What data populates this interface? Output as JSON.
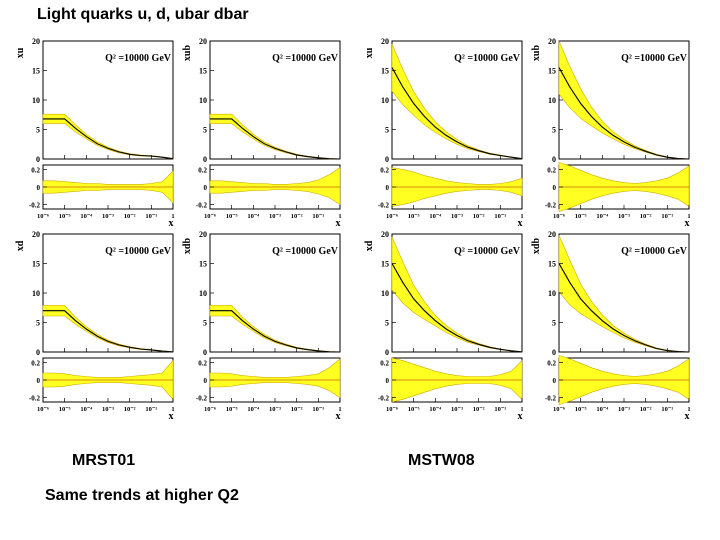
{
  "page": {
    "title": "Light quarks u, d, ubar dbar",
    "left_label": "MRST01",
    "right_label": "MSTW08",
    "footer": "Same trends at higher Q2"
  },
  "colors": {
    "band": "#ffff22",
    "band_edge": "#d4aa00",
    "central": "#000000",
    "ratio_line": "#cc6600"
  },
  "chart_data": [
    {
      "type": "line",
      "group": "MRST01",
      "ylabel": "xu",
      "annotation": "Q² =10000 GeV",
      "xlabel": "x",
      "x_ticks": [
        "10⁻⁶",
        "10⁻⁵",
        "10⁻⁴",
        "10⁻³",
        "10⁻²",
        "10⁻¹",
        "1"
      ],
      "y_ticks": [
        "20",
        "15",
        "10",
        "5",
        "0"
      ],
      "ratio_ticks": [
        "0.2",
        "0",
        "-0.2"
      ],
      "ylim": [
        0,
        20
      ],
      "ratio_ylim": [
        -0.25,
        0.25
      ],
      "x": [
        -6,
        -5.5,
        -5,
        -4.5,
        -4,
        -3.5,
        -3,
        -2.5,
        -2,
        -1.5,
        -1,
        -0.5,
        0
      ],
      "central": [
        6.8,
        6.8,
        6.8,
        5.2,
        3.8,
        2.6,
        1.8,
        1.2,
        0.8,
        0.6,
        0.5,
        0.3,
        0.05
      ],
      "band_width": [
        0.8,
        0.8,
        0.8,
        0.6,
        0.4,
        0.3,
        0.2,
        0.15,
        0.1,
        0.08,
        0.06,
        0.05,
        0.03
      ],
      "ratio_upper": [
        0.07,
        0.07,
        0.06,
        0.05,
        0.04,
        0.04,
        0.03,
        0.03,
        0.03,
        0.03,
        0.04,
        0.06,
        0.18
      ],
      "ratio_lower": [
        -0.07,
        -0.07,
        -0.06,
        -0.05,
        -0.04,
        -0.04,
        -0.03,
        -0.03,
        -0.03,
        -0.03,
        -0.04,
        -0.06,
        -0.18
      ]
    },
    {
      "type": "line",
      "group": "MRST01",
      "ylabel": "xub",
      "annotation": "Q² =10000 GeV",
      "xlabel": "x",
      "x_ticks": [
        "10⁻⁶",
        "10⁻⁵",
        "10⁻⁴",
        "10⁻³",
        "10⁻²",
        "10⁻¹",
        "1"
      ],
      "y_ticks": [
        "20",
        "15",
        "10",
        "5",
        "0"
      ],
      "ratio_ticks": [
        "0.2",
        "0",
        "-0.2"
      ],
      "ylim": [
        0,
        20
      ],
      "ratio_ylim": [
        -0.25,
        0.25
      ],
      "x": [
        -6,
        -5.5,
        -5,
        -4.5,
        -4,
        -3.5,
        -3,
        -2.5,
        -2,
        -1.5,
        -1,
        -0.5,
        0
      ],
      "central": [
        6.8,
        6.8,
        6.8,
        5.2,
        3.8,
        2.6,
        1.8,
        1.2,
        0.7,
        0.4,
        0.2,
        0.05,
        0.0
      ],
      "band_width": [
        0.8,
        0.8,
        0.8,
        0.6,
        0.4,
        0.3,
        0.2,
        0.15,
        0.1,
        0.08,
        0.05,
        0.03,
        0.02
      ],
      "ratio_upper": [
        0.07,
        0.07,
        0.06,
        0.05,
        0.04,
        0.04,
        0.03,
        0.03,
        0.04,
        0.05,
        0.08,
        0.14,
        0.22
      ],
      "ratio_lower": [
        -0.07,
        -0.07,
        -0.06,
        -0.05,
        -0.04,
        -0.04,
        -0.03,
        -0.03,
        -0.04,
        -0.05,
        -0.08,
        -0.12,
        -0.2
      ]
    },
    {
      "type": "line",
      "group": "MSTW08",
      "ylabel": "xu",
      "annotation": "Q² =10000 GeV",
      "xlabel": "x",
      "x_ticks": [
        "10⁻⁶",
        "10⁻⁵",
        "10⁻⁴",
        "10⁻³",
        "10⁻²",
        "10⁻¹",
        "1"
      ],
      "y_ticks": [
        "20",
        "15",
        "10",
        "5",
        "0"
      ],
      "ratio_ticks": [
        "0.2",
        "0",
        "-0.2"
      ],
      "ylim": [
        0,
        20
      ],
      "ratio_ylim": [
        -0.25,
        0.25
      ],
      "x": [
        -6,
        -5.5,
        -5,
        -4.5,
        -4,
        -3.5,
        -3,
        -2.5,
        -2,
        -1.5,
        -1,
        -0.5,
        0
      ],
      "central": [
        15.5,
        12.2,
        9.4,
        7.2,
        5.4,
        4.0,
        2.9,
        2.0,
        1.4,
        0.9,
        0.6,
        0.3,
        0.05
      ],
      "band_width": [
        4.0,
        3.0,
        2.0,
        1.4,
        0.9,
        0.6,
        0.4,
        0.25,
        0.15,
        0.1,
        0.06,
        0.05,
        0.03
      ],
      "ratio_upper": [
        0.22,
        0.2,
        0.17,
        0.13,
        0.1,
        0.07,
        0.05,
        0.04,
        0.03,
        0.03,
        0.04,
        0.06,
        0.1
      ],
      "ratio_lower": [
        -0.22,
        -0.2,
        -0.17,
        -0.13,
        -0.1,
        -0.07,
        -0.05,
        -0.04,
        -0.03,
        -0.03,
        -0.04,
        -0.06,
        -0.1
      ]
    },
    {
      "type": "line",
      "group": "MSTW08",
      "ylabel": "xub",
      "annotation": "Q² =10000 GeV",
      "xlabel": "x",
      "x_ticks": [
        "10⁻⁶",
        "10⁻⁵",
        "10⁻⁴",
        "10⁻³",
        "10⁻²",
        "10⁻¹",
        "1"
      ],
      "y_ticks": [
        "20",
        "15",
        "10",
        "5",
        "0"
      ],
      "ratio_ticks": [
        "0.2",
        "0",
        "-0.2"
      ],
      "ylim": [
        0,
        20
      ],
      "ratio_ylim": [
        -0.25,
        0.25
      ],
      "x": [
        -6,
        -5.5,
        -5,
        -4.5,
        -4,
        -3.5,
        -3,
        -2.5,
        -2,
        -1.5,
        -1,
        -0.5,
        0
      ],
      "central": [
        15.5,
        12.2,
        9.4,
        7.2,
        5.4,
        4.0,
        2.9,
        2.0,
        1.3,
        0.7,
        0.3,
        0.08,
        0.0
      ],
      "band_width": [
        4.5,
        3.5,
        2.5,
        1.6,
        1.0,
        0.6,
        0.4,
        0.25,
        0.15,
        0.1,
        0.06,
        0.03,
        0.02
      ],
      "ratio_upper": [
        0.28,
        0.24,
        0.19,
        0.14,
        0.1,
        0.07,
        0.05,
        0.04,
        0.05,
        0.07,
        0.1,
        0.16,
        0.24
      ],
      "ratio_lower": [
        -0.28,
        -0.24,
        -0.19,
        -0.14,
        -0.1,
        -0.07,
        -0.05,
        -0.04,
        -0.05,
        -0.07,
        -0.1,
        -0.14,
        -0.22
      ]
    },
    {
      "type": "line",
      "group": "MRST01",
      "ylabel": "xd",
      "annotation": "Q² =10000 GeV",
      "xlabel": "x",
      "x_ticks": [
        "10⁻⁶",
        "10⁻⁵",
        "10⁻⁴",
        "10⁻³",
        "10⁻²",
        "10⁻¹",
        "1"
      ],
      "y_ticks": [
        "20",
        "15",
        "10",
        "5",
        "0"
      ],
      "ratio_ticks": [
        "0.2",
        "0",
        "-0.2"
      ],
      "ylim": [
        0,
        20
      ],
      "ratio_ylim": [
        -0.25,
        0.25
      ],
      "x": [
        -6,
        -5.5,
        -5,
        -4.5,
        -4,
        -3.5,
        -3,
        -2.5,
        -2,
        -1.5,
        -1,
        -0.5,
        0
      ],
      "central": [
        7.0,
        7.0,
        7.0,
        5.3,
        3.9,
        2.7,
        1.8,
        1.2,
        0.8,
        0.5,
        0.35,
        0.15,
        0.02
      ],
      "band_width": [
        0.9,
        0.9,
        0.9,
        0.6,
        0.4,
        0.3,
        0.2,
        0.15,
        0.1,
        0.08,
        0.05,
        0.04,
        0.02
      ],
      "ratio_upper": [
        0.08,
        0.08,
        0.07,
        0.05,
        0.04,
        0.03,
        0.03,
        0.03,
        0.04,
        0.05,
        0.06,
        0.08,
        0.22
      ],
      "ratio_lower": [
        -0.08,
        -0.08,
        -0.07,
        -0.05,
        -0.04,
        -0.03,
        -0.03,
        -0.03,
        -0.04,
        -0.05,
        -0.06,
        -0.08,
        -0.22
      ]
    },
    {
      "type": "line",
      "group": "MRST01",
      "ylabel": "xdb",
      "annotation": "Q² =10000 GeV",
      "xlabel": "x",
      "x_ticks": [
        "10⁻⁶",
        "10⁻⁵",
        "10⁻⁴",
        "10⁻³",
        "10⁻²",
        "10⁻¹",
        "1"
      ],
      "y_ticks": [
        "20",
        "15",
        "10",
        "5",
        "0"
      ],
      "ratio_ticks": [
        "0.2",
        "0",
        "-0.2"
      ],
      "ylim": [
        0,
        20
      ],
      "ratio_ylim": [
        -0.25,
        0.25
      ],
      "x": [
        -6,
        -5.5,
        -5,
        -4.5,
        -4,
        -3.5,
        -3,
        -2.5,
        -2,
        -1.5,
        -1,
        -0.5,
        0
      ],
      "central": [
        7.0,
        7.0,
        7.0,
        5.3,
        3.9,
        2.7,
        1.8,
        1.2,
        0.7,
        0.4,
        0.18,
        0.04,
        0.0
      ],
      "band_width": [
        0.9,
        0.9,
        0.9,
        0.6,
        0.4,
        0.3,
        0.2,
        0.15,
        0.1,
        0.07,
        0.05,
        0.03,
        0.02
      ],
      "ratio_upper": [
        0.08,
        0.08,
        0.07,
        0.05,
        0.04,
        0.03,
        0.03,
        0.03,
        0.04,
        0.05,
        0.07,
        0.14,
        0.24
      ],
      "ratio_lower": [
        -0.08,
        -0.08,
        -0.07,
        -0.05,
        -0.04,
        -0.03,
        -0.03,
        -0.03,
        -0.04,
        -0.05,
        -0.07,
        -0.12,
        -0.2
      ]
    },
    {
      "type": "line",
      "group": "MSTW08",
      "ylabel": "xd",
      "annotation": "Q² =10000 GeV",
      "xlabel": "x",
      "x_ticks": [
        "10⁻⁶",
        "10⁻⁵",
        "10⁻⁴",
        "10⁻³",
        "10⁻²",
        "10⁻¹",
        "1"
      ],
      "y_ticks": [
        "20",
        "15",
        "10",
        "5",
        "0"
      ],
      "ratio_ticks": [
        "0.2",
        "0",
        "-0.2"
      ],
      "ylim": [
        0,
        20
      ],
      "ratio_ylim": [
        -0.25,
        0.25
      ],
      "x": [
        -6,
        -5.5,
        -5,
        -4.5,
        -4,
        -3.5,
        -3,
        -2.5,
        -2,
        -1.5,
        -1,
        -0.5,
        0
      ],
      "central": [
        15.0,
        11.8,
        9.0,
        7.0,
        5.3,
        3.9,
        2.8,
        1.9,
        1.3,
        0.8,
        0.45,
        0.2,
        0.02
      ],
      "band_width": [
        4.5,
        3.5,
        2.3,
        1.5,
        0.9,
        0.6,
        0.4,
        0.25,
        0.15,
        0.1,
        0.06,
        0.04,
        0.02
      ],
      "ratio_upper": [
        0.25,
        0.22,
        0.18,
        0.14,
        0.1,
        0.07,
        0.05,
        0.04,
        0.04,
        0.04,
        0.06,
        0.1,
        0.22
      ],
      "ratio_lower": [
        -0.25,
        -0.22,
        -0.18,
        -0.14,
        -0.1,
        -0.07,
        -0.05,
        -0.04,
        -0.04,
        -0.04,
        -0.06,
        -0.1,
        -0.22
      ]
    },
    {
      "type": "line",
      "group": "MSTW08",
      "ylabel": "xdb",
      "annotation": "Q² =10000 GeV",
      "xlabel": "x",
      "x_ticks": [
        "10⁻⁶",
        "10⁻⁵",
        "10⁻⁴",
        "10⁻³",
        "10⁻²",
        "10⁻¹",
        "1"
      ],
      "y_ticks": [
        "20",
        "15",
        "10",
        "5",
        "0"
      ],
      "ratio_ticks": [
        "0.2",
        "0",
        "-0.2"
      ],
      "ylim": [
        0,
        20
      ],
      "ratio_ylim": [
        -0.25,
        0.25
      ],
      "x": [
        -6,
        -5.5,
        -5,
        -4.5,
        -4,
        -3.5,
        -3,
        -2.5,
        -2,
        -1.5,
        -1,
        -0.5,
        0
      ],
      "central": [
        15.0,
        11.8,
        9.0,
        7.0,
        5.3,
        3.9,
        2.8,
        1.9,
        1.2,
        0.6,
        0.25,
        0.06,
        0.0
      ],
      "band_width": [
        4.8,
        3.8,
        2.5,
        1.6,
        1.0,
        0.6,
        0.4,
        0.25,
        0.15,
        0.1,
        0.06,
        0.03,
        0.02
      ],
      "ratio_upper": [
        0.28,
        0.24,
        0.19,
        0.14,
        0.1,
        0.07,
        0.05,
        0.04,
        0.05,
        0.07,
        0.1,
        0.16,
        0.24
      ],
      "ratio_lower": [
        -0.28,
        -0.24,
        -0.19,
        -0.14,
        -0.1,
        -0.07,
        -0.05,
        -0.04,
        -0.05,
        -0.07,
        -0.1,
        -0.14,
        -0.22
      ]
    }
  ]
}
